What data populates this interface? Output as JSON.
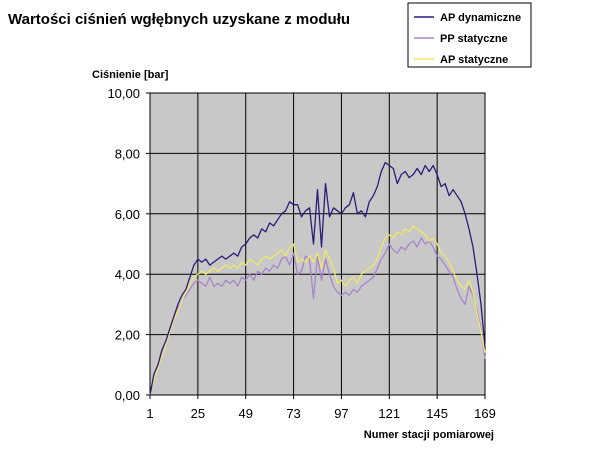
{
  "chart_data": {
    "type": "line",
    "title": "Wartości ciśnień wgłębnych uzyskane z modułu",
    "xlabel": "Numer stacji pomiarowej",
    "ylabel": "Ciśnienie [bar]",
    "x_range": [
      1,
      169
    ],
    "x_ticks": [
      1,
      25,
      49,
      73,
      97,
      121,
      145,
      169
    ],
    "ylim": [
      0,
      10
    ],
    "y_ticks": [
      "0,00",
      "2,00",
      "4,00",
      "6,00",
      "8,00",
      "10,00"
    ],
    "grid": true,
    "legend_position": "top-right",
    "series": [
      {
        "name": "AP dynamiczne",
        "color": "#2b1b78",
        "points": [
          [
            1,
            0.0
          ],
          [
            3,
            0.7
          ],
          [
            5,
            1.0
          ],
          [
            7,
            1.5
          ],
          [
            9,
            1.8
          ],
          [
            11,
            2.2
          ],
          [
            13,
            2.6
          ],
          [
            15,
            3.0
          ],
          [
            17,
            3.3
          ],
          [
            19,
            3.5
          ],
          [
            21,
            3.9
          ],
          [
            23,
            4.3
          ],
          [
            25,
            4.5
          ],
          [
            27,
            4.4
          ],
          [
            29,
            4.5
          ],
          [
            31,
            4.3
          ],
          [
            33,
            4.4
          ],
          [
            35,
            4.5
          ],
          [
            37,
            4.6
          ],
          [
            39,
            4.5
          ],
          [
            41,
            4.6
          ],
          [
            43,
            4.7
          ],
          [
            45,
            4.6
          ],
          [
            47,
            4.9
          ],
          [
            49,
            5.0
          ],
          [
            51,
            5.2
          ],
          [
            53,
            5.3
          ],
          [
            55,
            5.2
          ],
          [
            57,
            5.5
          ],
          [
            59,
            5.4
          ],
          [
            61,
            5.7
          ],
          [
            63,
            5.6
          ],
          [
            65,
            5.8
          ],
          [
            67,
            6.0
          ],
          [
            69,
            6.1
          ],
          [
            71,
            6.4
          ],
          [
            73,
            6.3
          ],
          [
            75,
            6.3
          ],
          [
            77,
            5.9
          ],
          [
            79,
            6.1
          ],
          [
            81,
            6.2
          ],
          [
            83,
            5.0
          ],
          [
            85,
            6.8
          ],
          [
            87,
            4.9
          ],
          [
            89,
            7.0
          ],
          [
            91,
            5.9
          ],
          [
            93,
            6.2
          ],
          [
            95,
            6.1
          ],
          [
            97,
            6.0
          ],
          [
            99,
            6.2
          ],
          [
            101,
            6.3
          ],
          [
            103,
            6.7
          ],
          [
            105,
            6.0
          ],
          [
            107,
            6.1
          ],
          [
            109,
            5.9
          ],
          [
            111,
            6.4
          ],
          [
            113,
            6.6
          ],
          [
            115,
            6.9
          ],
          [
            117,
            7.4
          ],
          [
            119,
            7.7
          ],
          [
            121,
            7.6
          ],
          [
            123,
            7.5
          ],
          [
            125,
            7.0
          ],
          [
            127,
            7.3
          ],
          [
            129,
            7.4
          ],
          [
            131,
            7.2
          ],
          [
            133,
            7.3
          ],
          [
            135,
            7.5
          ],
          [
            137,
            7.3
          ],
          [
            139,
            7.6
          ],
          [
            141,
            7.4
          ],
          [
            143,
            7.6
          ],
          [
            145,
            7.3
          ],
          [
            147,
            6.9
          ],
          [
            149,
            7.0
          ],
          [
            151,
            6.6
          ],
          [
            153,
            6.8
          ],
          [
            155,
            6.6
          ],
          [
            157,
            6.4
          ],
          [
            159,
            6.0
          ],
          [
            161,
            5.5
          ],
          [
            163,
            4.9
          ],
          [
            165,
            4.0
          ],
          [
            167,
            3.0
          ],
          [
            169,
            1.6
          ]
        ]
      },
      {
        "name": "PP statyczne",
        "color": "#a884cc",
        "points": [
          [
            1,
            0.0
          ],
          [
            3,
            0.5
          ],
          [
            5,
            0.9
          ],
          [
            7,
            1.4
          ],
          [
            9,
            1.8
          ],
          [
            11,
            2.2
          ],
          [
            13,
            2.6
          ],
          [
            15,
            2.9
          ],
          [
            17,
            3.1
          ],
          [
            19,
            3.3
          ],
          [
            21,
            3.5
          ],
          [
            23,
            3.7
          ],
          [
            25,
            3.8
          ],
          [
            27,
            3.7
          ],
          [
            29,
            3.6
          ],
          [
            31,
            3.9
          ],
          [
            33,
            3.6
          ],
          [
            35,
            3.7
          ],
          [
            37,
            3.6
          ],
          [
            39,
            3.8
          ],
          [
            41,
            3.7
          ],
          [
            43,
            3.8
          ],
          [
            45,
            3.6
          ],
          [
            47,
            3.9
          ],
          [
            49,
            3.8
          ],
          [
            51,
            4.0
          ],
          [
            53,
            3.8
          ],
          [
            55,
            4.1
          ],
          [
            57,
            4.0
          ],
          [
            59,
            4.2
          ],
          [
            61,
            4.1
          ],
          [
            63,
            4.3
          ],
          [
            65,
            4.2
          ],
          [
            67,
            4.5
          ],
          [
            69,
            4.6
          ],
          [
            71,
            4.3
          ],
          [
            73,
            4.7
          ],
          [
            75,
            4.0
          ],
          [
            77,
            4.1
          ],
          [
            79,
            4.6
          ],
          [
            81,
            4.5
          ],
          [
            83,
            3.2
          ],
          [
            85,
            4.6
          ],
          [
            87,
            3.8
          ],
          [
            89,
            4.5
          ],
          [
            91,
            4.0
          ],
          [
            93,
            3.6
          ],
          [
            95,
            3.4
          ],
          [
            97,
            3.3
          ],
          [
            99,
            3.4
          ],
          [
            101,
            3.3
          ],
          [
            103,
            3.5
          ],
          [
            105,
            3.4
          ],
          [
            107,
            3.6
          ],
          [
            109,
            3.7
          ],
          [
            111,
            3.8
          ],
          [
            113,
            3.9
          ],
          [
            115,
            4.2
          ],
          [
            117,
            4.5
          ],
          [
            119,
            4.7
          ],
          [
            121,
            5.0
          ],
          [
            123,
            4.8
          ],
          [
            125,
            4.7
          ],
          [
            127,
            4.9
          ],
          [
            129,
            4.8
          ],
          [
            131,
            5.0
          ],
          [
            133,
            5.1
          ],
          [
            135,
            4.9
          ],
          [
            137,
            5.2
          ],
          [
            139,
            5.0
          ],
          [
            141,
            5.1
          ],
          [
            143,
            4.9
          ],
          [
            145,
            4.6
          ],
          [
            147,
            4.5
          ],
          [
            149,
            4.3
          ],
          [
            151,
            4.1
          ],
          [
            153,
            3.9
          ],
          [
            155,
            3.5
          ],
          [
            157,
            3.2
          ],
          [
            159,
            3.0
          ],
          [
            161,
            3.6
          ],
          [
            163,
            3.3
          ],
          [
            165,
            2.8
          ],
          [
            167,
            2.2
          ],
          [
            169,
            1.2
          ]
        ]
      },
      {
        "name": "AP statyczne",
        "color": "#f0e86a",
        "points": [
          [
            1,
            0.0
          ],
          [
            3,
            0.5
          ],
          [
            5,
            0.9
          ],
          [
            7,
            1.3
          ],
          [
            9,
            1.7
          ],
          [
            11,
            2.1
          ],
          [
            13,
            2.5
          ],
          [
            15,
            2.8
          ],
          [
            17,
            3.1
          ],
          [
            19,
            3.4
          ],
          [
            21,
            3.7
          ],
          [
            23,
            3.9
          ],
          [
            25,
            4.0
          ],
          [
            27,
            4.1
          ],
          [
            29,
            4.0
          ],
          [
            31,
            4.1
          ],
          [
            33,
            4.2
          ],
          [
            35,
            4.1
          ],
          [
            37,
            4.2
          ],
          [
            39,
            4.3
          ],
          [
            41,
            4.2
          ],
          [
            43,
            4.3
          ],
          [
            45,
            4.2
          ],
          [
            47,
            4.4
          ],
          [
            49,
            4.3
          ],
          [
            51,
            4.5
          ],
          [
            53,
            4.4
          ],
          [
            55,
            4.3
          ],
          [
            57,
            4.5
          ],
          [
            59,
            4.6
          ],
          [
            61,
            4.5
          ],
          [
            63,
            4.6
          ],
          [
            65,
            4.7
          ],
          [
            67,
            4.8
          ],
          [
            69,
            4.6
          ],
          [
            71,
            4.9
          ],
          [
            73,
            5.0
          ],
          [
            75,
            4.4
          ],
          [
            77,
            4.5
          ],
          [
            79,
            4.4
          ],
          [
            81,
            4.6
          ],
          [
            83,
            4.4
          ],
          [
            85,
            4.7
          ],
          [
            87,
            4.2
          ],
          [
            89,
            4.8
          ],
          [
            91,
            4.5
          ],
          [
            93,
            4.2
          ],
          [
            95,
            3.7
          ],
          [
            97,
            3.8
          ],
          [
            99,
            3.6
          ],
          [
            101,
            3.8
          ],
          [
            103,
            3.9
          ],
          [
            105,
            3.7
          ],
          [
            107,
            4.0
          ],
          [
            109,
            4.1
          ],
          [
            111,
            4.2
          ],
          [
            113,
            4.3
          ],
          [
            115,
            4.5
          ],
          [
            117,
            4.9
          ],
          [
            119,
            5.2
          ],
          [
            121,
            5.3
          ],
          [
            123,
            5.2
          ],
          [
            125,
            5.4
          ],
          [
            127,
            5.3
          ],
          [
            129,
            5.5
          ],
          [
            131,
            5.4
          ],
          [
            133,
            5.6
          ],
          [
            135,
            5.5
          ],
          [
            137,
            5.4
          ],
          [
            139,
            5.3
          ],
          [
            141,
            5.1
          ],
          [
            143,
            5.2
          ],
          [
            145,
            5.0
          ],
          [
            147,
            4.7
          ],
          [
            149,
            4.6
          ],
          [
            151,
            4.4
          ],
          [
            153,
            4.1
          ],
          [
            155,
            3.8
          ],
          [
            157,
            3.6
          ],
          [
            159,
            3.5
          ],
          [
            161,
            3.8
          ],
          [
            163,
            3.4
          ],
          [
            165,
            2.7
          ],
          [
            167,
            2.1
          ],
          [
            169,
            1.4
          ]
        ]
      }
    ]
  }
}
